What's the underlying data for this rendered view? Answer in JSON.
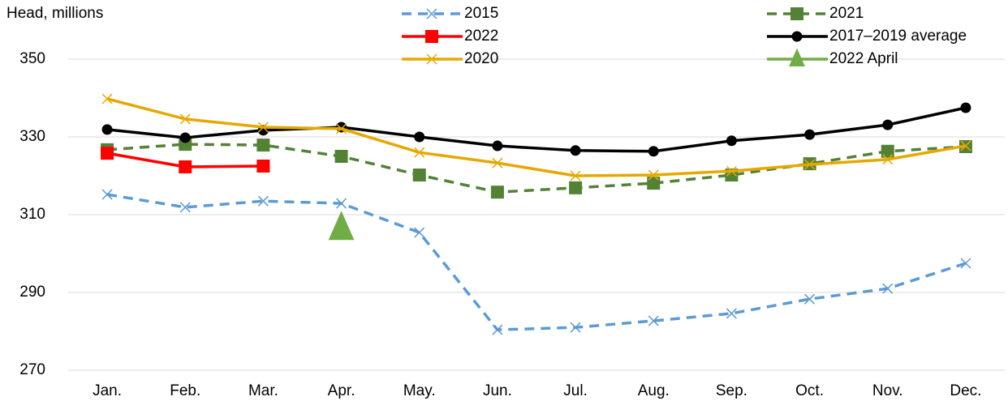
{
  "chart_data": {
    "type": "line",
    "y_label": "Head, millions",
    "categories": [
      "Jan.",
      "Feb.",
      "Mar.",
      "Apr.",
      "May.",
      "Jun.",
      "Jul.",
      "Aug.",
      "Sep.",
      "Oct.",
      "Nov.",
      "Dec."
    ],
    "ylim": [
      270,
      350
    ],
    "yticks": [
      270,
      290,
      310,
      330,
      350
    ],
    "grid": true,
    "series": [
      {
        "name": "2015",
        "color": "#5b9bd5",
        "dashed": true,
        "marker": "x",
        "values": [
          315.2,
          311.9,
          313.5,
          312.9,
          305.4,
          280.4,
          281.0,
          282.7,
          284.6,
          288.3,
          291.0,
          297.5
        ]
      },
      {
        "name": "2021",
        "color": "#548235",
        "dashed": true,
        "marker": "square",
        "values": [
          326.7,
          328.1,
          327.9,
          325.0,
          320.2,
          315.8,
          316.9,
          318.1,
          320.2,
          323.1,
          326.3,
          327.5
        ]
      },
      {
        "name": "2022",
        "color": "#ff0000",
        "dashed": false,
        "marker": "square",
        "values": [
          325.8,
          322.3,
          322.5,
          null,
          null,
          null,
          null,
          null,
          null,
          null,
          null,
          null
        ]
      },
      {
        "name": "2017–2019 average",
        "color": "#000000",
        "dashed": false,
        "marker": "circle",
        "values": [
          331.9,
          329.8,
          331.7,
          332.5,
          330.0,
          327.7,
          326.5,
          326.3,
          329.0,
          330.6,
          333.1,
          337.5
        ]
      },
      {
        "name": "2020",
        "color": "#e6a800",
        "dashed": false,
        "marker": "x",
        "values": [
          339.8,
          334.6,
          332.5,
          332.1,
          326.0,
          323.3,
          320.0,
          320.2,
          321.2,
          322.9,
          324.2,
          327.7
        ]
      },
      {
        "name": "2022 April",
        "color": "#70ad47",
        "dashed": false,
        "marker": "triangle",
        "values": [
          null,
          null,
          null,
          306.5,
          null,
          null,
          null,
          null,
          null,
          null,
          null,
          null
        ]
      }
    ]
  }
}
